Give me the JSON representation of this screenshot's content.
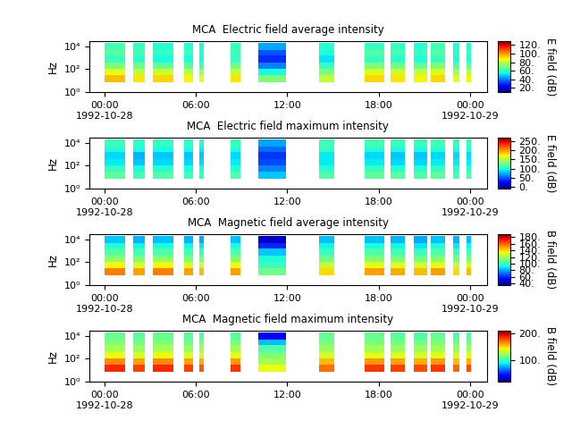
{
  "chart_data": [
    {
      "type": "heatmap",
      "title": "MCA  Electric field average intensity",
      "y_label": "Hz",
      "colorbar_label": "E field (dB)",
      "log": "y",
      "xlim": [
        -1,
        25.1
      ],
      "xticks": [
        {
          "value": 0,
          "label": "00:00\n1992-10-28"
        },
        {
          "value": 6,
          "label": "06:00"
        },
        {
          "value": 12,
          "label": "12:00"
        },
        {
          "value": 18,
          "label": "18:00"
        },
        {
          "value": 24,
          "label": "00:00\n1992-10-29"
        }
      ],
      "ylim": [
        1,
        30000
      ],
      "yticks": [
        {
          "value": 1,
          "label": "10⁰"
        },
        {
          "value": 100,
          "label": "10²"
        },
        {
          "value": 10000,
          "label": "10⁴"
        }
      ],
      "segments": [
        [
          0,
          1.36
        ],
        [
          1.9,
          2.66
        ],
        [
          3.2,
          4.5
        ],
        [
          5.2,
          5.8
        ],
        [
          6.2,
          6.5
        ],
        [
          8.3,
          8.9
        ],
        [
          10.1,
          11.9
        ],
        [
          14.1,
          15.1
        ],
        [
          17.1,
          18.4
        ],
        [
          18.8,
          19.75
        ],
        [
          20.3,
          21.2
        ],
        [
          21.4,
          22.35
        ],
        [
          22.9,
          23.3
        ],
        [
          23.8,
          24.05
        ]
      ],
      "bands": [
        7,
        30,
        100,
        400,
        1500,
        5000,
        20000
      ],
      "cells": [
        [
          95,
          85,
          70,
          60,
          65,
          62
        ],
        [
          90,
          80,
          68,
          58,
          62,
          60
        ],
        [
          92,
          82,
          66,
          55,
          60,
          58
        ],
        [
          88,
          78,
          65,
          56,
          60,
          58
        ],
        [
          85,
          75,
          62,
          55,
          58,
          56
        ],
        [
          90,
          80,
          68,
          60,
          62,
          60
        ],
        [
          70,
          55,
          40,
          30,
          35,
          45
        ],
        [
          80,
          70,
          60,
          52,
          56,
          58
        ],
        [
          92,
          84,
          70,
          60,
          64,
          60
        ],
        [
          90,
          82,
          68,
          58,
          62,
          60
        ],
        [
          88,
          80,
          66,
          56,
          60,
          58
        ],
        [
          92,
          84,
          70,
          60,
          64,
          62
        ],
        [
          85,
          76,
          64,
          55,
          58,
          56
        ],
        [
          88,
          78,
          66,
          57,
          60,
          58
        ]
      ],
      "color_range": [
        10,
        130
      ],
      "color_ticks": [
        {
          "value": 20,
          "label": "20."
        },
        {
          "value": 40,
          "label": "40."
        },
        {
          "value": 60,
          "label": "60."
        },
        {
          "value": 80,
          "label": "80."
        },
        {
          "value": 100,
          "label": "100."
        },
        {
          "value": 120,
          "label": "120."
        }
      ]
    },
    {
      "type": "heatmap",
      "title": "MCA  Electric field maximum intensity",
      "y_label": "Hz",
      "colorbar_label": "E field (dB)",
      "log": "y",
      "xlim": [
        -1,
        25.1
      ],
      "xticks": [
        {
          "value": 0,
          "label": "00:00\n1992-10-28"
        },
        {
          "value": 6,
          "label": "06:00"
        },
        {
          "value": 12,
          "label": "12:00"
        },
        {
          "value": 18,
          "label": "18:00"
        },
        {
          "value": 24,
          "label": "00:00\n1992-10-29"
        }
      ],
      "ylim": [
        1,
        30000
      ],
      "yticks": [
        {
          "value": 1,
          "label": "10⁰"
        },
        {
          "value": 100,
          "label": "10²"
        },
        {
          "value": 10000,
          "label": "10⁴"
        }
      ],
      "segments": [
        [
          0,
          1.36
        ],
        [
          1.9,
          2.66
        ],
        [
          3.2,
          4.5
        ],
        [
          5.2,
          5.8
        ],
        [
          6.2,
          6.5
        ],
        [
          8.3,
          8.9
        ],
        [
          10.1,
          11.9
        ],
        [
          14.1,
          15.1
        ],
        [
          17.1,
          18.4
        ],
        [
          18.8,
          19.75
        ],
        [
          20.3,
          21.2
        ],
        [
          21.4,
          22.35
        ],
        [
          22.9,
          23.3
        ],
        [
          23.8,
          24.05
        ]
      ],
      "bands": [
        7,
        30,
        100,
        400,
        1500,
        5000,
        20000
      ],
      "cells": [
        [
          120,
          105,
          90,
          85,
          100,
          110
        ],
        [
          110,
          95,
          80,
          75,
          95,
          105
        ],
        [
          115,
          100,
          85,
          80,
          95,
          108
        ],
        [
          110,
          95,
          85,
          80,
          95,
          105
        ],
        [
          105,
          95,
          85,
          80,
          90,
          100
        ],
        [
          115,
          100,
          90,
          85,
          100,
          110
        ],
        [
          80,
          60,
          45,
          40,
          55,
          70
        ],
        [
          115,
          100,
          90,
          90,
          105,
          110
        ],
        [
          120,
          105,
          90,
          85,
          100,
          112
        ],
        [
          118,
          100,
          85,
          80,
          98,
          110
        ],
        [
          115,
          100,
          85,
          80,
          95,
          108
        ],
        [
          120,
          105,
          90,
          85,
          100,
          112
        ],
        [
          110,
          100,
          90,
          85,
          95,
          105
        ],
        [
          115,
          100,
          90,
          85,
          100,
          108
        ]
      ],
      "color_range": [
        -10,
        270
      ],
      "color_ticks": [
        {
          "value": 0,
          "label": "0."
        },
        {
          "value": 50,
          "label": "50."
        },
        {
          "value": 100,
          "label": "100."
        },
        {
          "value": 150,
          "label": "150."
        },
        {
          "value": 200,
          "label": "200."
        },
        {
          "value": 250,
          "label": "250."
        }
      ]
    },
    {
      "type": "heatmap",
      "title": "MCA  Magnetic field average intensity",
      "y_label": "Hz",
      "colorbar_label": "B field (dB)",
      "log": "y",
      "xlim": [
        -1,
        25.1
      ],
      "xticks": [
        {
          "value": 0,
          "label": "00:00\n1992-10-28"
        },
        {
          "value": 6,
          "label": "06:00"
        },
        {
          "value": 12,
          "label": "12:00"
        },
        {
          "value": 18,
          "label": "18:00"
        },
        {
          "value": 24,
          "label": "00:00\n1992-10-29"
        }
      ],
      "ylim": [
        1,
        30000
      ],
      "yticks": [
        {
          "value": 1,
          "label": "10⁰"
        },
        {
          "value": 100,
          "label": "10²"
        },
        {
          "value": 10000,
          "label": "10⁴"
        }
      ],
      "segments": [
        [
          0,
          1.36
        ],
        [
          1.9,
          2.66
        ],
        [
          3.2,
          4.5
        ],
        [
          5.2,
          5.8
        ],
        [
          6.2,
          6.5
        ],
        [
          8.3,
          8.9
        ],
        [
          10.1,
          11.9
        ],
        [
          14.1,
          15.1
        ],
        [
          17.1,
          18.4
        ],
        [
          18.8,
          19.75
        ],
        [
          20.3,
          21.2
        ],
        [
          21.4,
          22.35
        ],
        [
          22.9,
          23.3
        ],
        [
          23.8,
          24.05
        ]
      ],
      "bands": [
        7,
        30,
        100,
        400,
        1500,
        5000,
        20000
      ],
      "cells": [
        [
          155,
          135,
          115,
          105,
          95,
          85
        ],
        [
          150,
          130,
          112,
          102,
          92,
          82
        ],
        [
          155,
          135,
          115,
          104,
          94,
          84
        ],
        [
          150,
          130,
          112,
          102,
          92,
          82
        ],
        [
          145,
          128,
          110,
          100,
          90,
          80
        ],
        [
          150,
          132,
          114,
          104,
          94,
          84
        ],
        [
          110,
          100,
          95,
          85,
          60,
          45
        ],
        [
          140,
          125,
          110,
          100,
          92,
          84
        ],
        [
          150,
          132,
          114,
          104,
          94,
          84
        ],
        [
          148,
          130,
          112,
          102,
          92,
          82
        ],
        [
          145,
          128,
          110,
          100,
          90,
          80
        ],
        [
          150,
          132,
          114,
          104,
          94,
          84
        ],
        [
          140,
          125,
          110,
          100,
          90,
          82
        ],
        [
          145,
          128,
          112,
          102,
          92,
          84
        ]
      ],
      "color_range": [
        35,
        190
      ],
      "color_ticks": [
        {
          "value": 40,
          "label": "40."
        },
        {
          "value": 60,
          "label": "60."
        },
        {
          "value": 80,
          "label": "80."
        },
        {
          "value": 100,
          "label": "100."
        },
        {
          "value": 120,
          "label": "120."
        },
        {
          "value": 140,
          "label": "140."
        },
        {
          "value": 160,
          "label": "160."
        },
        {
          "value": 180,
          "label": "180."
        }
      ]
    },
    {
      "type": "heatmap",
      "title": "MCA  Magnetic field maximum intensity",
      "y_label": "Hz",
      "colorbar_label": "B field (dB)",
      "log": "y",
      "xlim": [
        -1,
        25.1
      ],
      "xticks": [
        {
          "value": 0,
          "label": "00:00\n1992-10-28"
        },
        {
          "value": 6,
          "label": "06:00"
        },
        {
          "value": 12,
          "label": "12:00"
        },
        {
          "value": 18,
          "label": "18:00"
        },
        {
          "value": 24,
          "label": "00:00\n1992-10-29"
        }
      ],
      "ylim": [
        1,
        30000
      ],
      "yticks": [
        {
          "value": 1,
          "label": "10⁰"
        },
        {
          "value": 100,
          "label": "10²"
        },
        {
          "value": 10000,
          "label": "10⁴"
        }
      ],
      "segments": [
        [
          0,
          1.36
        ],
        [
          1.9,
          2.66
        ],
        [
          3.2,
          4.5
        ],
        [
          5.2,
          5.8
        ],
        [
          6.2,
          6.5
        ],
        [
          8.3,
          8.9
        ],
        [
          10.1,
          11.9
        ],
        [
          14.1,
          15.1
        ],
        [
          17.1,
          18.4
        ],
        [
          18.8,
          19.75
        ],
        [
          20.3,
          21.2
        ],
        [
          21.4,
          22.35
        ],
        [
          22.9,
          23.3
        ],
        [
          23.8,
          24.05
        ]
      ],
      "bands": [
        7,
        30,
        100,
        400,
        1500,
        5000,
        20000
      ],
      "cells": [
        [
          185,
          165,
          140,
          125,
          115,
          110
        ],
        [
          180,
          160,
          135,
          122,
          112,
          108
        ],
        [
          185,
          165,
          140,
          125,
          115,
          110
        ],
        [
          180,
          160,
          135,
          122,
          112,
          108
        ],
        [
          175,
          158,
          135,
          122,
          112,
          106
        ],
        [
          182,
          162,
          138,
          124,
          114,
          108
        ],
        [
          140,
          125,
          115,
          105,
          80,
          40
        ],
        [
          170,
          155,
          135,
          122,
          114,
          110
        ],
        [
          182,
          162,
          138,
          124,
          114,
          110
        ],
        [
          180,
          160,
          136,
          122,
          112,
          108
        ],
        [
          178,
          158,
          135,
          122,
          112,
          106
        ],
        [
          182,
          162,
          138,
          124,
          114,
          110
        ],
        [
          172,
          155,
          134,
          122,
          112,
          106
        ],
        [
          178,
          158,
          136,
          122,
          112,
          108
        ]
      ],
      "color_range": [
        20,
        210
      ],
      "color_ticks": [
        {
          "value": 100,
          "label": "100."
        },
        {
          "value": 200,
          "label": "200."
        }
      ]
    }
  ]
}
